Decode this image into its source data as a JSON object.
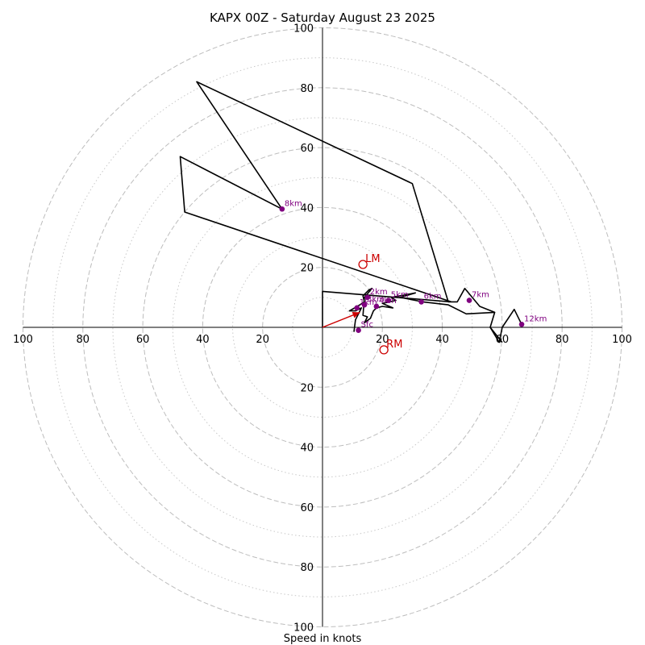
{
  "chart_data": {
    "type": "line",
    "title": "KAPX 00Z - Saturday August 23 2025",
    "xlabel": "Speed in knots",
    "ylabel": "",
    "xlim": [
      -100,
      100
    ],
    "ylim": [
      -100,
      100
    ],
    "rings_dashed": [
      20,
      40,
      60,
      80,
      100
    ],
    "rings_dotted": [
      10,
      30,
      50,
      70,
      90
    ],
    "x_ticks": [
      {
        "value": -100,
        "label": "100"
      },
      {
        "value": -80,
        "label": "80"
      },
      {
        "value": -60,
        "label": "60"
      },
      {
        "value": -40,
        "label": "40"
      },
      {
        "value": -20,
        "label": "20"
      },
      {
        "value": 20,
        "label": "20"
      },
      {
        "value": 40,
        "label": "40"
      },
      {
        "value": 60,
        "label": "60"
      },
      {
        "value": 80,
        "label": "80"
      },
      {
        "value": 100,
        "label": "100"
      }
    ],
    "y_ticks": [
      {
        "value": 100,
        "label": "100"
      },
      {
        "value": 80,
        "label": "80"
      },
      {
        "value": 60,
        "label": "60"
      },
      {
        "value": 40,
        "label": "40"
      },
      {
        "value": 20,
        "label": "20"
      },
      {
        "value": -20,
        "label": "20"
      },
      {
        "value": -40,
        "label": "40"
      },
      {
        "value": -60,
        "label": "60"
      },
      {
        "value": -80,
        "label": "80"
      },
      {
        "value": -100,
        "label": "100"
      }
    ],
    "hodograph": {
      "color": "#000000",
      "points": [
        [
          10.5,
          -1.5
        ],
        [
          11,
          2.5
        ],
        [
          13,
          6.5
        ],
        [
          11,
          5.5
        ],
        [
          9,
          5.5
        ],
        [
          12.5,
          7.5
        ],
        [
          14,
          8.5
        ],
        [
          13.5,
          10.5
        ],
        [
          15.5,
          12.5
        ],
        [
          16.5,
          13
        ],
        [
          14,
          10
        ],
        [
          13.5,
          4
        ],
        [
          15,
          3.5
        ],
        [
          14,
          1.5
        ],
        [
          16,
          3
        ],
        [
          17,
          5.5
        ],
        [
          18,
          6.5
        ],
        [
          20,
          7
        ],
        [
          23.5,
          6.5
        ],
        [
          20,
          8
        ],
        [
          24.5,
          9
        ],
        [
          23,
          10
        ],
        [
          31,
          11.5
        ],
        [
          26,
          10
        ],
        [
          33.5,
          8.5
        ],
        [
          42,
          7.5
        ],
        [
          48,
          4.5
        ],
        [
          57.5,
          5
        ],
        [
          52.5,
          7
        ],
        [
          47.5,
          13
        ],
        [
          45,
          8.5
        ],
        [
          42,
          8.5
        ],
        [
          30,
          48
        ],
        [
          -42,
          82
        ],
        [
          -13.5,
          39.5
        ],
        [
          -47.5,
          57
        ],
        [
          -46,
          38.5
        ],
        [
          43,
          8.5
        ],
        [
          0,
          12
        ],
        [
          0,
          0
        ]
      ],
      "extra_segments": [
        [
          [
            57.5,
            5
          ],
          [
            56,
            0
          ],
          [
            60,
            -5
          ]
        ],
        [
          [
            56,
            0
          ],
          [
            59,
            -5
          ],
          [
            60,
            0
          ],
          [
            64,
            6
          ],
          [
            66.5,
            1
          ]
        ]
      ]
    },
    "height_markers": {
      "color": "#800080",
      "points": [
        {
          "x": 12,
          "y": -1,
          "label": "Sfc"
        },
        {
          "x": 11.5,
          "y": 6.5,
          "label": "1km"
        },
        {
          "x": 15,
          "y": 10,
          "label": "2km"
        },
        {
          "x": 14,
          "y": 7.5,
          "label": "3km"
        },
        {
          "x": 18,
          "y": 7,
          "label": "4km"
        },
        {
          "x": 22,
          "y": 9,
          "label": "5km"
        },
        {
          "x": 33,
          "y": 8.5,
          "label": "6km"
        },
        {
          "x": 49,
          "y": 9,
          "label": "7km"
        },
        {
          "x": -13.5,
          "y": 39.5,
          "label": "8km"
        },
        {
          "x": 66.5,
          "y": 1,
          "label": "12km"
        }
      ]
    },
    "storm_motion": {
      "color": "#cc0000",
      "arrow_to": [
        12.5,
        5
      ],
      "left_mover": {
        "x": 13.5,
        "y": 21,
        "label": "LM"
      },
      "right_mover": {
        "x": 20.5,
        "y": -7.5,
        "label": "RM"
      }
    }
  }
}
